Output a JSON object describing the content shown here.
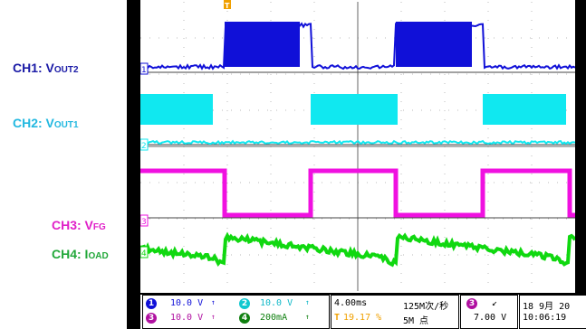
{
  "labels": {
    "ch1": {
      "prefix": "CH1: V",
      "sub": "OUT2",
      "color": "#1a1aa6"
    },
    "ch2": {
      "prefix": "CH2: V",
      "sub": "OUT1",
      "color": "#22b8e0"
    },
    "ch3": {
      "prefix": "CH3: V",
      "sub": "FG",
      "color": "#e020c8"
    },
    "ch4": {
      "prefix": "CH4: I",
      "sub": "OAD",
      "color": "#22a83a"
    }
  },
  "colors": {
    "ch1": "#1010d8",
    "ch2": "#10e8f0",
    "ch3": "#f010e0",
    "ch4": "#10d810",
    "trigger": "#f0a000"
  },
  "trigger_marker": "T",
  "markers": {
    "ch1": "1",
    "ch2": "2",
    "ch3": "3",
    "ch4": "4"
  },
  "status": {
    "ch1_scale": "10.0 V",
    "ch2_scale": "10.0 V",
    "ch3_scale": "10.0 V",
    "ch4_scale": "200mA",
    "bw_symbol": "↑",
    "timebase": "4.00ms",
    "trigger_pos": "19.17 %",
    "sample_rate": "125M次/秒",
    "record_length": "5M 点",
    "trig_source": "3",
    "trig_slope": "↙",
    "trig_level": "7.00 V",
    "date": "18 9月 20",
    "time": "10:06:19"
  }
}
